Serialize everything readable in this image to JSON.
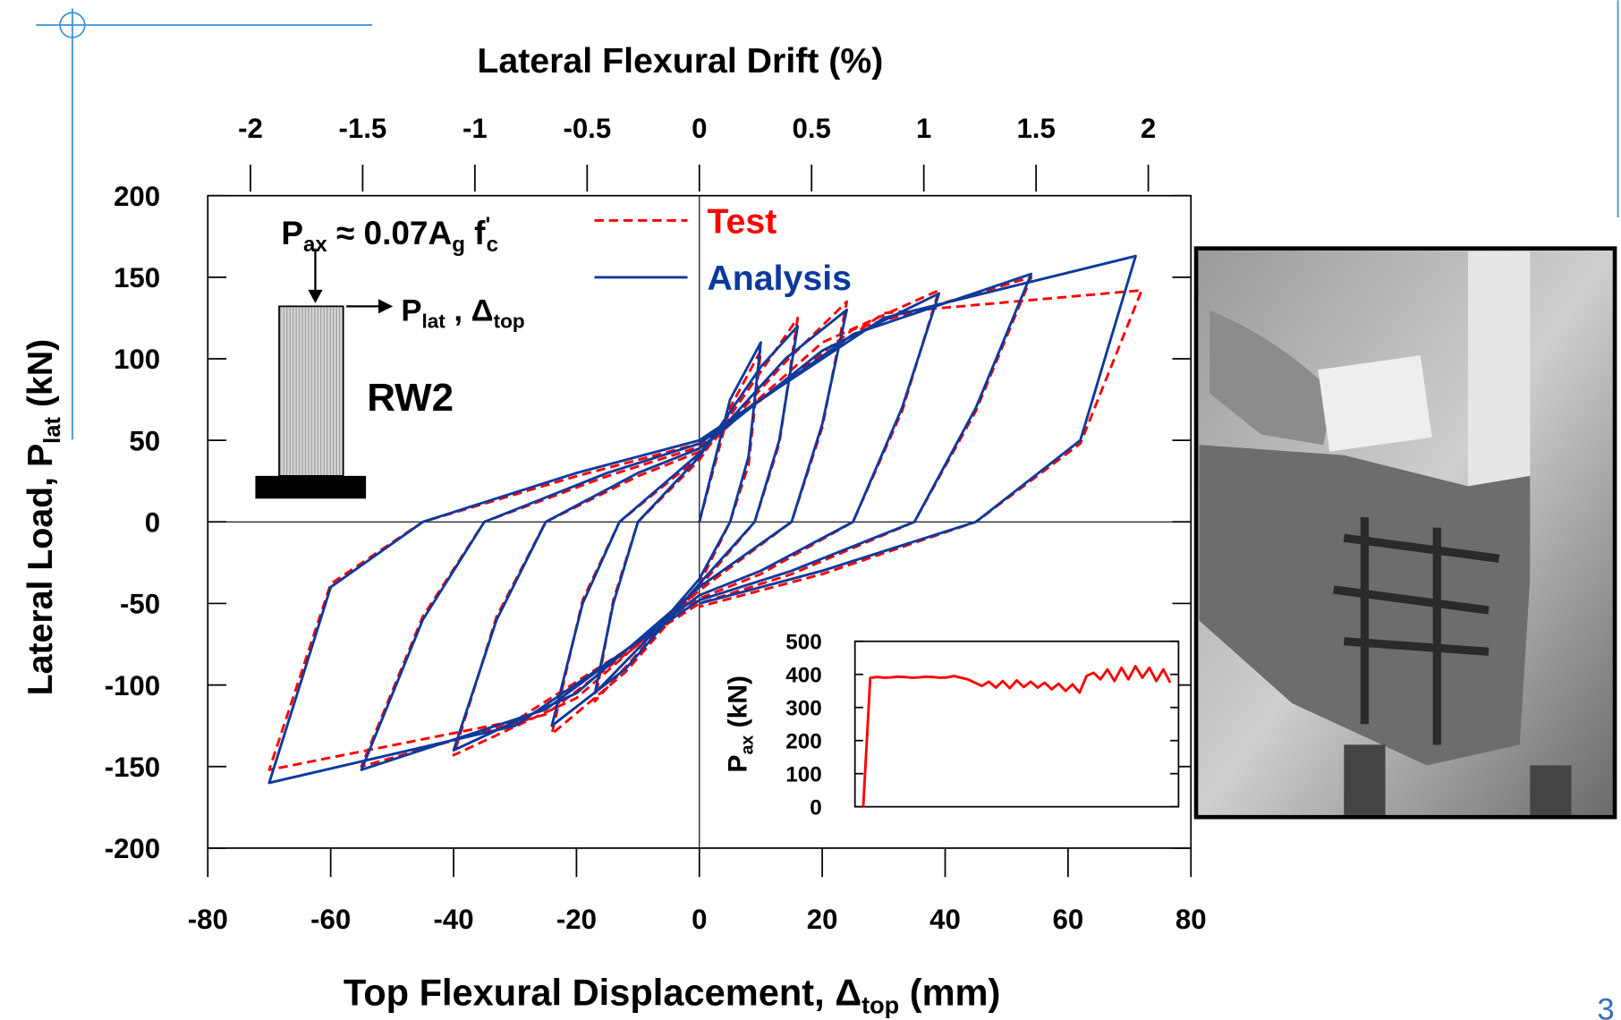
{
  "page_number": "3",
  "chart_data": [
    {
      "type": "line",
      "x2_label": "Lateral Flexural Drift  (%)",
      "x_label": [
        "Top Flexural Displacement, Δ",
        "top",
        "  (mm)"
      ],
      "y_label": [
        "Lateral Load, P",
        "lat",
        "  (kN)"
      ],
      "load_annotation": [
        "P",
        "ax",
        " ≈ 0.07A",
        "g",
        " f",
        "'",
        "c"
      ],
      "lateral_annotation": [
        "P",
        "lat",
        " , Δ",
        "top"
      ],
      "specimen_label": "RW2",
      "xlim": [
        -80,
        80
      ],
      "xticks": [
        -80,
        -60,
        -40,
        -20,
        0,
        20,
        40,
        60,
        80
      ],
      "x2lim": [
        -2.19,
        2.19
      ],
      "x2ticks": [
        -2,
        -1.5,
        -1,
        -0.5,
        0,
        0.5,
        1,
        1.5,
        2
      ],
      "ylim": [
        -200,
        200
      ],
      "yticks": [
        -200,
        -150,
        -100,
        -50,
        0,
        50,
        100,
        150,
        200
      ],
      "series": [
        {
          "name": "Test",
          "color": "#ff0000",
          "dashed": true,
          "x": [
            0,
            5,
            10,
            8,
            5,
            0,
            -8,
            -17,
            -14,
            -10,
            0,
            10,
            16,
            13,
            9,
            0,
            -12,
            -24,
            -19,
            -13,
            0,
            14,
            24,
            20,
            15,
            0,
            -20,
            -40,
            -33,
            -25,
            -10,
            0,
            20,
            39,
            33,
            25,
            10,
            0,
            -25,
            -55,
            -45,
            -35,
            -15,
            0,
            25,
            54,
            45,
            35,
            15,
            0,
            -30,
            -70,
            -60,
            -45,
            -20,
            0,
            30,
            72,
            62,
            45,
            20,
            0
          ],
          "values": [
            0,
            70,
            105,
            35,
            0,
            -38,
            -72,
            -110,
            -48,
            0,
            38,
            92,
            125,
            48,
            0,
            -40,
            -92,
            -130,
            -48,
            0,
            40,
            98,
            135,
            58,
            0,
            -42,
            -108,
            -143,
            -58,
            0,
            28,
            43,
            110,
            142,
            68,
            0,
            -32,
            -47,
            -118,
            -150,
            -58,
            0,
            28,
            46,
            118,
            150,
            68,
            0,
            -32,
            -50,
            -122,
            -152,
            -38,
            0,
            28,
            48,
            128,
            142,
            48,
            0,
            -32,
            -52
          ]
        },
        {
          "name": "Analysis",
          "color": "#0b3a9c",
          "dashed": false,
          "x": [
            0,
            5,
            10,
            8,
            5,
            0,
            -8,
            -17,
            -14,
            -10,
            0,
            10,
            16,
            13,
            9,
            0,
            -12,
            -24,
            -19,
            -13,
            0,
            14,
            24,
            20,
            15,
            0,
            -20,
            -40,
            -33,
            -25,
            -10,
            0,
            20,
            39,
            33,
            25,
            10,
            0,
            -25,
            -55,
            -45,
            -35,
            -15,
            0,
            25,
            54,
            45,
            35,
            15,
            0,
            -30,
            -70,
            -60,
            -45,
            -20,
            0,
            30,
            71,
            62,
            45,
            20,
            0
          ],
          "values": [
            0,
            75,
            110,
            40,
            0,
            -35,
            -70,
            -105,
            -50,
            0,
            40,
            95,
            120,
            50,
            0,
            -38,
            -90,
            -125,
            -50,
            0,
            42,
            100,
            130,
            60,
            0,
            -40,
            -105,
            -140,
            -60,
            0,
            30,
            45,
            105,
            140,
            70,
            0,
            -30,
            -45,
            -115,
            -152,
            -60,
            0,
            30,
            48,
            115,
            152,
            70,
            0,
            -30,
            -48,
            -125,
            -160,
            -40,
            0,
            30,
            50,
            125,
            163,
            50,
            0,
            -30,
            -50
          ]
        }
      ]
    },
    {
      "type": "line",
      "y_label": [
        "P",
        "ax",
        " (kN)"
      ],
      "color": "#ff0000",
      "ylim": [
        0,
        500
      ],
      "yticks": [
        0,
        100,
        200,
        300,
        400,
        500
      ],
      "values": [
        0,
        390,
        392,
        390,
        391,
        393,
        392,
        390,
        391,
        393,
        392,
        390,
        391,
        395,
        390,
        385,
        375,
        365,
        378,
        360,
        380,
        358,
        382,
        362,
        378,
        360,
        375,
        355,
        372,
        350,
        370,
        345,
        395,
        405,
        385,
        415,
        380,
        420,
        385,
        425,
        390,
        420,
        380,
        415,
        375
      ]
    }
  ]
}
